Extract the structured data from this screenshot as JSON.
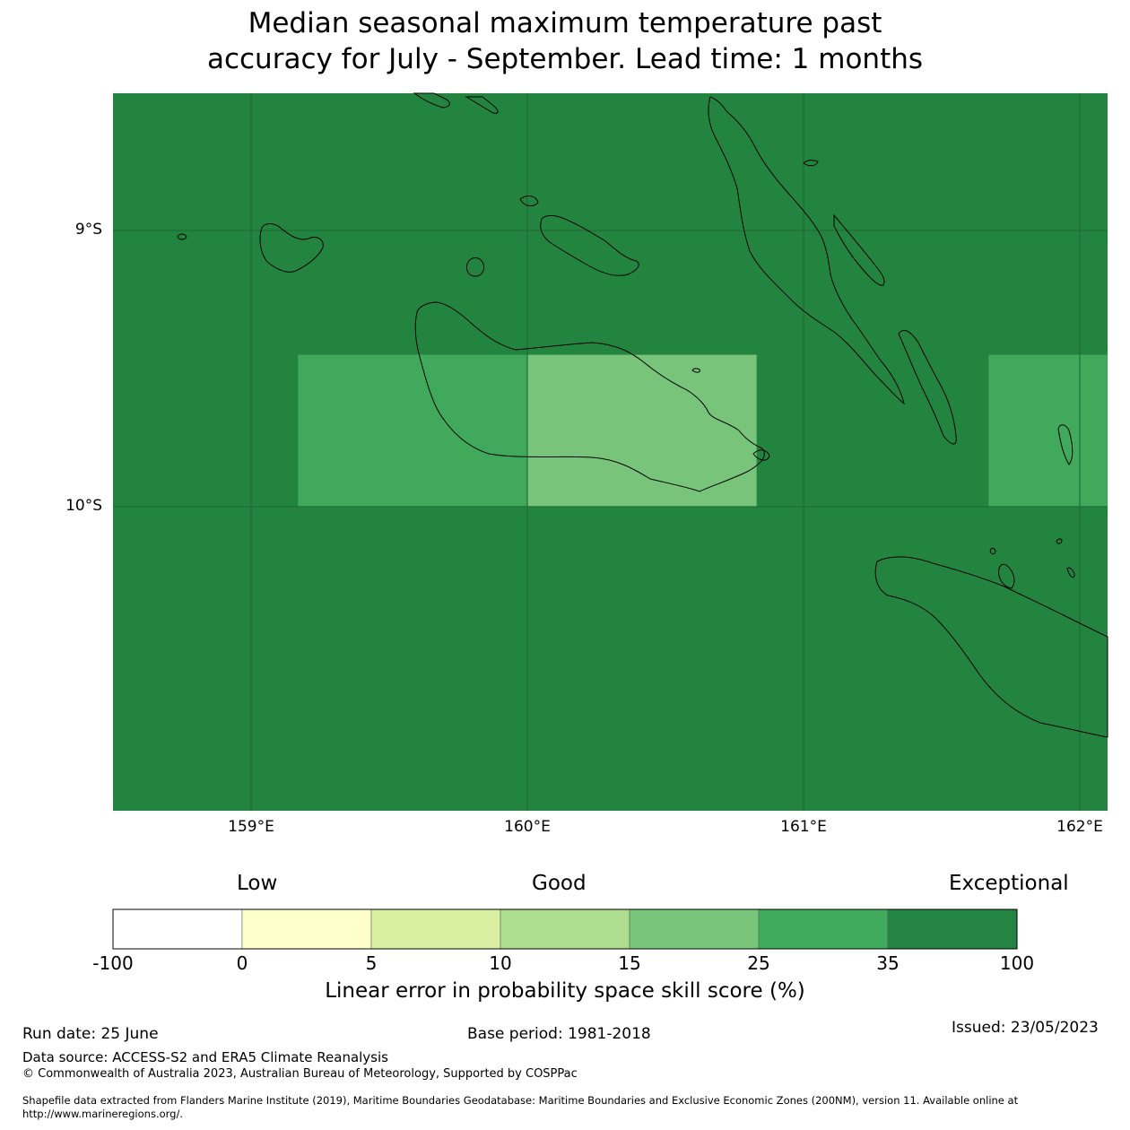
{
  "title": {
    "line1": "Median seasonal maximum temperature past",
    "line2": "accuracy for July - September. Lead time: 1 months"
  },
  "map": {
    "lon_range": [
      158.5,
      162.1
    ],
    "lat_range": [
      -10.8,
      -8.5
    ],
    "background_color": "#23843f",
    "gridlines": true,
    "lat_ticks": [
      {
        "value": -9,
        "label": "9°S"
      },
      {
        "value": -10,
        "label": "10°S"
      }
    ],
    "lon_ticks": [
      {
        "value": 159,
        "label": "159°E"
      },
      {
        "value": 160,
        "label": "160°E"
      },
      {
        "value": 161,
        "label": "161°E"
      },
      {
        "value": 162,
        "label": "162°E"
      }
    ],
    "cells": [
      {
        "lon": [
          159.17,
          160.0
        ],
        "lat": [
          -10.0,
          -9.45
        ],
        "color": "#41a95b"
      },
      {
        "lon": [
          160.0,
          160.83
        ],
        "lat": [
          -10.0,
          -9.45
        ],
        "color": "#78c47a"
      },
      {
        "lon": [
          161.67,
          162.1
        ],
        "lat": [
          -10.0,
          -9.45
        ],
        "color": "#41a95b"
      }
    ]
  },
  "legend": {
    "low": "Low",
    "good": "Good",
    "exceptional": "Exceptional",
    "ticks": [
      "-100",
      "0",
      "5",
      "10",
      "15",
      "25",
      "35",
      "100"
    ],
    "colors": [
      "#ffffff",
      "#ffffcc",
      "#d9f0a3",
      "#addd8e",
      "#78c679",
      "#41ab5d",
      "#238443"
    ],
    "label": "Linear error in probability space skill score (%)"
  },
  "footer": {
    "run_date": "Run date: 25 June",
    "base_period": "Base period: 1981-2018",
    "issued": "Issued: 23/05/2023",
    "data_source": "Data source: ACCESS-S2 and ERA5 Climate Reanalysis",
    "copyright": "© Commonwealth of Australia 2023, Australian Bureau of Meteorology, Supported by COSPPac",
    "shapefile1": "Shapefile data extracted from Flanders Marine Institute (2019), Maritime Boundaries Geodatabase: Maritime Boundaries and Exclusive Economic Zones (200NM), version 11. Available online at",
    "shapefile2": "http://www.marineregions.org/."
  }
}
